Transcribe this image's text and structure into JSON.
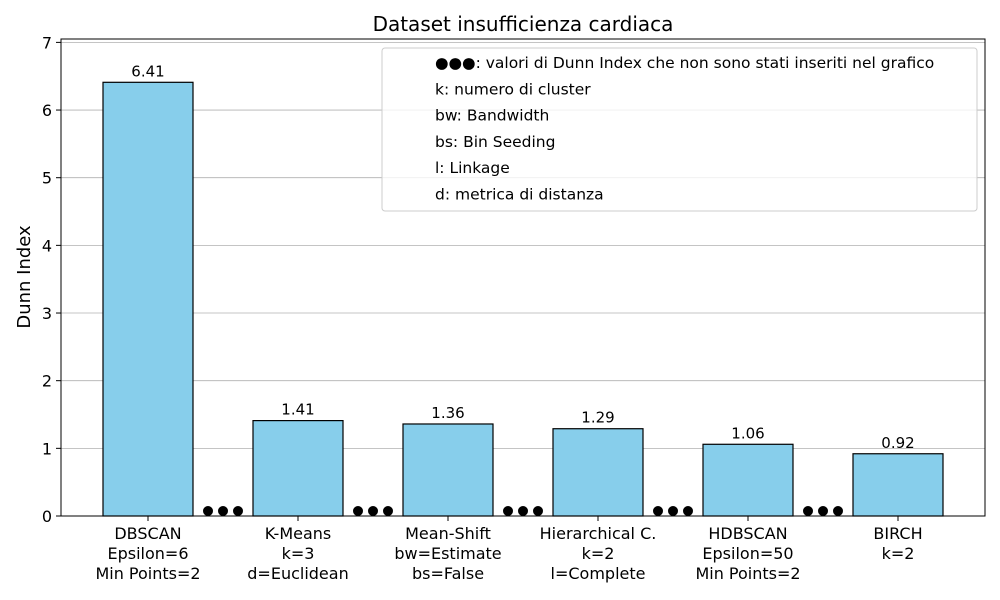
{
  "chart_data": {
    "type": "bar",
    "title": "Dataset insufficienza cardiaca",
    "xlabel": "",
    "ylabel": "Dunn Index",
    "ylim": [
      0,
      7.05
    ],
    "yticks": [
      0,
      1,
      2,
      3,
      4,
      5,
      6,
      7
    ],
    "grid": "y",
    "categories": [
      [
        "DBSCAN",
        "Epsilon=6",
        "Min Points=2"
      ],
      [
        "K-Means",
        "k=3",
        "d=Euclidean"
      ],
      [
        "Mean-Shift",
        "bw=Estimate",
        "bs=False"
      ],
      [
        "Hierarchical C.",
        "k=2",
        "l=Complete"
      ],
      [
        "HDBSCAN",
        "Epsilon=50",
        "Min Points=2"
      ],
      [
        "BIRCH",
        "k=2"
      ]
    ],
    "values": [
      6.41,
      1.41,
      1.36,
      1.29,
      1.06,
      0.92
    ],
    "value_labels": [
      "6.41",
      "1.41",
      "1.36",
      "1.29",
      "1.06",
      "0.92"
    ],
    "bar_color": "#87CEEB",
    "bar_edge_color": "#000000",
    "gap_markers": "●●●",
    "legend": {
      "placement": "top-right",
      "entries": [
        "●●●: valori di Dunn Index che non sono stati inseriti nel grafico",
        "k: numero di cluster",
        "bw: Bandwidth",
        "bs: Bin Seeding",
        "l: Linkage",
        "d: metrica di distanza"
      ]
    }
  }
}
